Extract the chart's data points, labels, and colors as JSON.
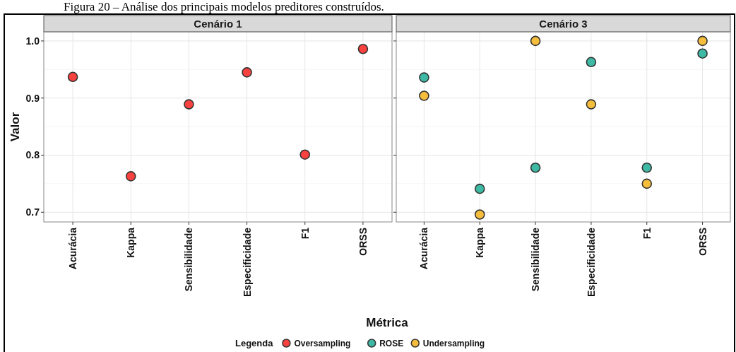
{
  "chart_data": [
    {
      "type": "scatter",
      "title": "Cenário 1",
      "annotations": [
        "Figura 20 – Análise dos principais modelos preditores construídos."
      ],
      "xlabel": "Métrica",
      "ylabel": "Valor",
      "legend_title": "Legenda",
      "legend": "bottom",
      "grid": true,
      "marker": "circle",
      "categories": [
        "Acurácia",
        "Kappa",
        "Sensibilidade",
        "Especificidade",
        "F1",
        "ORSS"
      ],
      "ylim": [
        0.683,
        1.016
      ],
      "yticks": [
        {
          "value": 0.7,
          "label": "0.7"
        },
        {
          "value": 0.8,
          "label": "0.8"
        },
        {
          "value": 0.9,
          "label": "0.9"
        },
        {
          "value": 1.0,
          "label": "1.0"
        }
      ],
      "series": [
        {
          "name": "Oversampling",
          "color": "#f8423f",
          "values": [
            0.937,
            0.763,
            0.889,
            0.945,
            0.801,
            0.986
          ]
        }
      ]
    },
    {
      "type": "scatter",
      "title": "Cenário 3",
      "legend": "bottom",
      "grid": true,
      "marker": "circle",
      "tick_labels": "x",
      "categories": [
        "Acurácia",
        "Kappa",
        "Sensibilidade",
        "Especificidade",
        "F1",
        "ORSS"
      ],
      "ylim": [
        0.683,
        1.016
      ],
      "yticks": [
        0.7,
        0.8,
        0.9,
        1.0
      ],
      "series": [
        {
          "name": "ROSE",
          "color": "#3db9a4",
          "values": [
            0.936,
            0.741,
            0.778,
            0.963,
            0.778,
            0.978
          ]
        },
        {
          "name": "Undersampling",
          "color": "#f5bd3c",
          "values": [
            0.904,
            0.696,
            1.0,
            0.889,
            0.75,
            1.0
          ]
        }
      ]
    }
  ]
}
